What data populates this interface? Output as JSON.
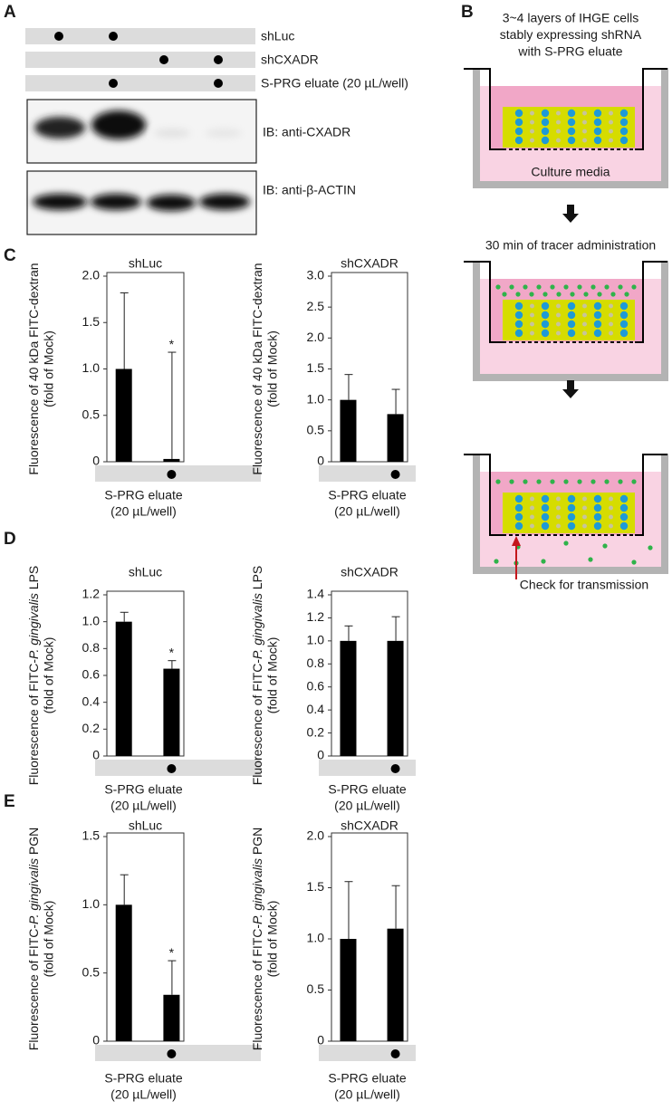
{
  "panel_labels": [
    "A",
    "B",
    "C",
    "D",
    "E"
  ],
  "panel_a": {
    "rows": [
      {
        "label": "shLuc",
        "lanes": [
          true,
          true,
          false,
          false
        ]
      },
      {
        "label": "shCXADR",
        "lanes": [
          false,
          false,
          true,
          true
        ]
      },
      {
        "label": "S-PRG eluate (20 µL/well)",
        "lanes": [
          false,
          true,
          false,
          true
        ]
      }
    ],
    "blots": [
      "IB: anti-CXADR",
      "IB: anti-β-ACTIN"
    ]
  },
  "panel_b": {
    "header": [
      "3~4 layers of IHGE cells",
      "stably expressing shRNA",
      "with S-PRG eluate"
    ],
    "media_label": "Culture media",
    "step_label": "30 min of tracer administration",
    "check_label": "Check for transmission"
  },
  "chart_data": [
    {
      "type": "bar",
      "title": "shLuc",
      "ylabel": {
        "parts": [
          {
            "text": "Fluorescence of 40 kDa FITC-dextran"
          }
        ],
        "line2": "(fold of Mock)"
      },
      "xlabel": [
        "S-PRG eluate",
        "(20 µL/well)"
      ],
      "treatment": [
        false,
        true
      ],
      "values": [
        1,
        0.03
      ],
      "errors": [
        0.82,
        1.15
      ],
      "significance": [
        null,
        "*"
      ],
      "color": "#000000",
      "ylim": [
        0,
        2
      ],
      "yticks": [
        0,
        0.5,
        {
          "value": 1,
          "label": "1.0"
        },
        1.5,
        {
          "value": 2,
          "label": "2.0"
        }
      ]
    },
    {
      "type": "bar",
      "title": "shCXADR",
      "ylabel": {
        "parts": [
          {
            "text": "Fluorescence of 40 kDa FITC-dextran"
          }
        ],
        "line2": "(fold of Mock)"
      },
      "xlabel": [
        "S-PRG eluate",
        "(20 µL/well)"
      ],
      "treatment": [
        false,
        true
      ],
      "values": [
        1,
        0.77
      ],
      "errors": [
        0.41,
        0.4
      ],
      "significance": [
        null,
        null
      ],
      "color": "#000000",
      "ylim": [
        0,
        3
      ],
      "yticks": [
        0,
        0.5,
        {
          "value": 1,
          "label": "1.0"
        },
        1.5,
        {
          "value": 2,
          "label": "2.0"
        },
        2.5,
        {
          "value": 3,
          "label": "3.0"
        }
      ]
    },
    {
      "type": "bar",
      "title": "shLuc",
      "ylabel": {
        "parts": [
          {
            "text": "Fluorescence of FITC-"
          },
          {
            "text": "P. gingivalis",
            "italic": true
          },
          {
            "text": " LPS"
          }
        ],
        "line2": "(fold of Mock)"
      },
      "xlabel": [
        "S-PRG eluate",
        "(20 µL/well)"
      ],
      "treatment": [
        false,
        true
      ],
      "values": [
        1,
        0.65
      ],
      "errors": [
        0.07,
        0.06
      ],
      "significance": [
        null,
        "*"
      ],
      "color": "#000000",
      "ylim": [
        0,
        1.2
      ],
      "yticks": [
        0,
        0.2,
        0.4,
        0.6,
        0.8,
        {
          "value": 1,
          "label": "1.0"
        },
        1.2
      ]
    },
    {
      "type": "bar",
      "title": "shCXADR",
      "ylabel": {
        "parts": [
          {
            "text": "Fluorescence of FITC-"
          },
          {
            "text": "P. gingivalis",
            "italic": true
          },
          {
            "text": " LPS"
          }
        ],
        "line2": "(fold of Mock)"
      },
      "xlabel": [
        "S-PRG eluate",
        "(20 µL/well)"
      ],
      "treatment": [
        false,
        true
      ],
      "values": [
        1,
        1
      ],
      "errors": [
        0.13,
        0.21
      ],
      "significance": [
        null,
        null
      ],
      "color": "#000000",
      "ylim": [
        0,
        1.4
      ],
      "yticks": [
        0,
        0.2,
        0.4,
        0.6,
        0.8,
        {
          "value": 1,
          "label": "1.0"
        },
        1.2,
        1.4
      ]
    },
    {
      "type": "bar",
      "title": "shLuc",
      "ylabel": {
        "parts": [
          {
            "text": "Fluorescence of FITC-"
          },
          {
            "text": "P. gingivalis",
            "italic": true
          },
          {
            "text": " PGN"
          }
        ],
        "line2": "(fold of Mock)"
      },
      "xlabel": [
        "S-PRG eluate",
        "(20 µL/well)"
      ],
      "treatment": [
        false,
        true
      ],
      "values": [
        1,
        0.34
      ],
      "errors": [
        0.22,
        0.25
      ],
      "significance": [
        null,
        "*"
      ],
      "color": "#000000",
      "ylim": [
        0,
        1.5
      ],
      "yticks": [
        0,
        0.5,
        {
          "value": 1,
          "label": "1.0"
        },
        1.5
      ]
    },
    {
      "type": "bar",
      "title": "shCXADR",
      "ylabel": {
        "parts": [
          {
            "text": "Fluorescence of FITC-"
          },
          {
            "text": "P. gingivalis",
            "italic": true
          },
          {
            "text": " PGN"
          }
        ],
        "line2": "(fold of Mock)"
      },
      "xlabel": [
        "S-PRG eluate",
        "(20 µL/well)"
      ],
      "treatment": [
        false,
        true
      ],
      "values": [
        1,
        1.1
      ],
      "errors": [
        0.56,
        0.42
      ],
      "significance": [
        null,
        null
      ],
      "color": "#000000",
      "ylim": [
        0,
        2
      ],
      "yticks": [
        0,
        0.5,
        {
          "value": 1,
          "label": "1.0"
        },
        1.5,
        {
          "value": 2,
          "label": "2.0"
        }
      ]
    }
  ]
}
